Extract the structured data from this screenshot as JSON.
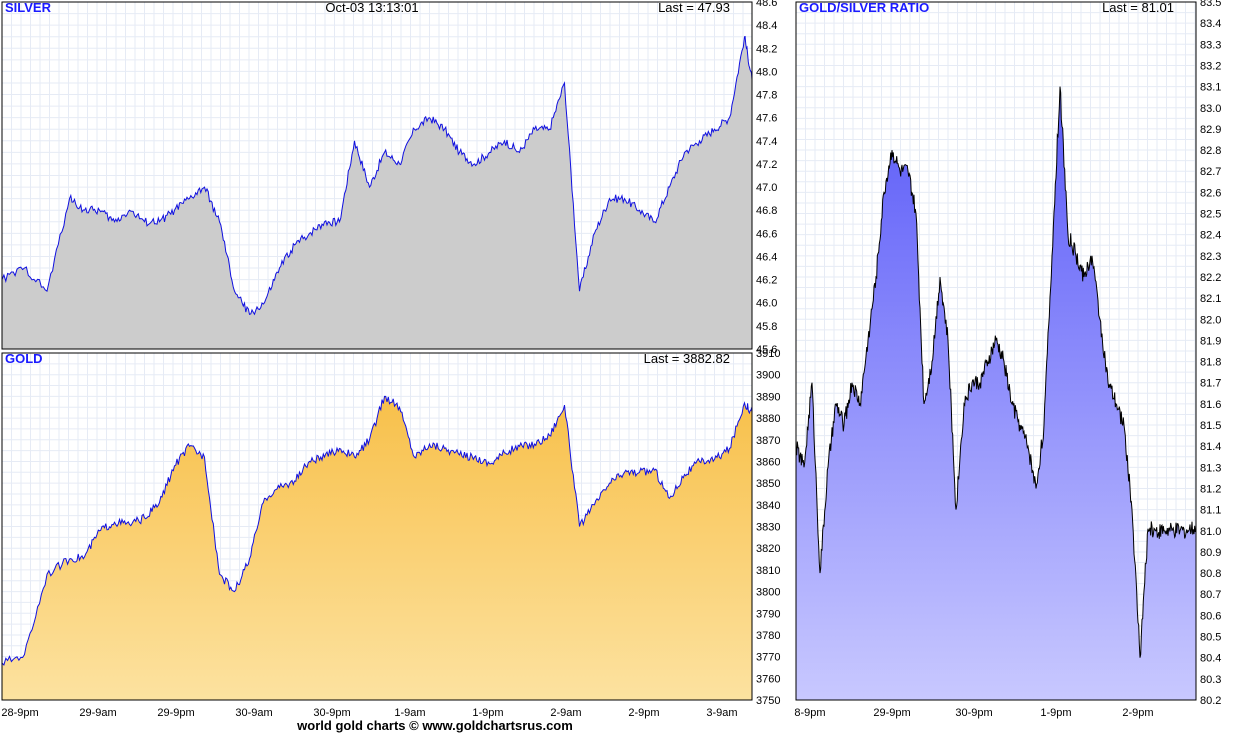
{
  "footer": "world gold charts © www.goldchartsrus.com",
  "colors": {
    "grid": "#e6ebf5",
    "title": "#1a1aff",
    "silver_line": "#1010e0",
    "silver_fill": "#cccccc",
    "gold_line": "#1010e0",
    "gold_fill_top": "#f8c04a",
    "gold_fill_bottom": "#fce2a0",
    "ratio_line": "#000000",
    "ratio_fill_top": "#5a5af8",
    "ratio_fill_bottom": "#c8c8ff"
  },
  "chart_data": [
    {
      "id": "silver",
      "type": "area",
      "title": "SILVER",
      "timestamp": "Oct-03  13:13:01",
      "last_label": "Last = 47.93",
      "ylim": [
        45.6,
        48.6
      ],
      "yticks": [
        "45.6",
        "45.8",
        "46.0",
        "46.2",
        "46.4",
        "46.6",
        "46.8",
        "47.0",
        "47.2",
        "47.4",
        "47.6",
        "47.8",
        "48.0",
        "48.2",
        "48.4",
        "48.6"
      ],
      "x": [
        0,
        3,
        6,
        9,
        11,
        13,
        15,
        17,
        19,
        21,
        23,
        25,
        27,
        29,
        31,
        33,
        35,
        37,
        39,
        41,
        43,
        45,
        47,
        49,
        51,
        53,
        55,
        57,
        59,
        61,
        63,
        65,
        67,
        69,
        71,
        73,
        75,
        77,
        79,
        81,
        83,
        85,
        87,
        89,
        91,
        93,
        95,
        97,
        99,
        100
      ],
      "values": [
        46.2,
        46.3,
        46.1,
        46.9,
        46.8,
        46.8,
        46.7,
        46.8,
        46.7,
        46.7,
        46.8,
        46.9,
        47.0,
        46.7,
        46.1,
        45.9,
        46.0,
        46.3,
        46.5,
        46.6,
        46.7,
        46.7,
        47.4,
        47.0,
        47.3,
        47.2,
        47.5,
        47.6,
        47.5,
        47.3,
        47.2,
        47.3,
        47.4,
        47.3,
        47.5,
        47.5,
        47.9,
        46.1,
        46.6,
        46.9,
        46.9,
        46.8,
        46.7,
        47.0,
        47.3,
        47.4,
        47.5,
        47.6,
        48.3,
        47.93
      ]
    },
    {
      "id": "gold",
      "type": "area",
      "title": "GOLD",
      "last_label": "Last = 3882.82",
      "ylim": [
        3750,
        3910
      ],
      "yticks": [
        "3750",
        "3760",
        "3770",
        "3780",
        "3790",
        "3800",
        "3810",
        "3820",
        "3830",
        "3840",
        "3850",
        "3860",
        "3870",
        "3880",
        "3890",
        "3900",
        "3910"
      ],
      "x_ticks": [
        "28-9pm",
        "29-9am",
        "29-9pm",
        "30-9am",
        "30-9pm",
        "1-9am",
        "1-9pm",
        "2-9am",
        "2-9pm",
        "3-9am"
      ],
      "x": [
        0,
        3,
        6,
        9,
        11,
        13,
        15,
        17,
        19,
        21,
        23,
        25,
        27,
        29,
        31,
        33,
        35,
        37,
        39,
        41,
        43,
        45,
        47,
        49,
        51,
        53,
        55,
        57,
        59,
        61,
        63,
        65,
        67,
        69,
        71,
        73,
        75,
        77,
        79,
        81,
        83,
        85,
        87,
        89,
        91,
        93,
        95,
        97,
        99,
        100
      ],
      "values": [
        3767,
        3771,
        3808,
        3815,
        3816,
        3828,
        3832,
        3831,
        3834,
        3841,
        3858,
        3867,
        3862,
        3808,
        3800,
        3815,
        3843,
        3848,
        3851,
        3860,
        3862,
        3866,
        3862,
        3870,
        3890,
        3885,
        3862,
        3868,
        3866,
        3863,
        3862,
        3859,
        3864,
        3867,
        3868,
        3872,
        3886,
        3830,
        3840,
        3850,
        3855,
        3855,
        3856,
        3843,
        3854,
        3860,
        3861,
        3866,
        3887,
        3882.82
      ]
    },
    {
      "id": "ratio",
      "type": "area",
      "title": "GOLD/SILVER RATIO",
      "last_label": "Last = 81.01",
      "ylim": [
        80.2,
        83.5
      ],
      "yticks": [
        "80.2",
        "80.3",
        "80.4",
        "80.5",
        "80.6",
        "80.7",
        "80.8",
        "80.9",
        "81.0",
        "81.1",
        "81.2",
        "81.3",
        "81.4",
        "81.5",
        "81.6",
        "81.7",
        "81.8",
        "81.9",
        "82.0",
        "82.1",
        "82.2",
        "82.3",
        "82.4",
        "82.5",
        "82.6",
        "82.7",
        "82.8",
        "82.9",
        "83.0",
        "83.1",
        "83.2",
        "83.3",
        "83.4",
        "83.5"
      ],
      "x_ticks": [
        "8-9pm",
        "29-9pm",
        "30-9pm",
        "1-9pm",
        "2-9pm"
      ],
      "x": [
        0,
        2,
        4,
        6,
        8,
        10,
        12,
        14,
        16,
        18,
        20,
        22,
        24,
        26,
        28,
        30,
        32,
        34,
        36,
        38,
        40,
        42,
        44,
        46,
        48,
        50,
        52,
        54,
        56,
        58,
        60,
        62,
        64,
        66,
        68,
        70,
        72,
        74,
        76,
        78,
        80,
        82,
        84,
        86,
        88,
        90,
        92,
        94,
        96,
        98,
        100
      ],
      "values": [
        81.4,
        81.3,
        81.7,
        80.8,
        81.3,
        81.6,
        81.5,
        81.7,
        81.6,
        81.9,
        82.2,
        82.6,
        82.8,
        82.7,
        82.7,
        82.5,
        81.6,
        81.8,
        82.2,
        81.9,
        81.1,
        81.6,
        81.7,
        81.7,
        81.8,
        81.9,
        81.8,
        81.6,
        81.5,
        81.4,
        81.2,
        81.5,
        82.3,
        83.1,
        82.4,
        82.3,
        82.2,
        82.3,
        82.0,
        81.7,
        81.6,
        81.5,
        81.1,
        80.4,
        81.01,
        81.0,
        81.0,
        81.0,
        81.0,
        81.0,
        81.01
      ]
    }
  ]
}
